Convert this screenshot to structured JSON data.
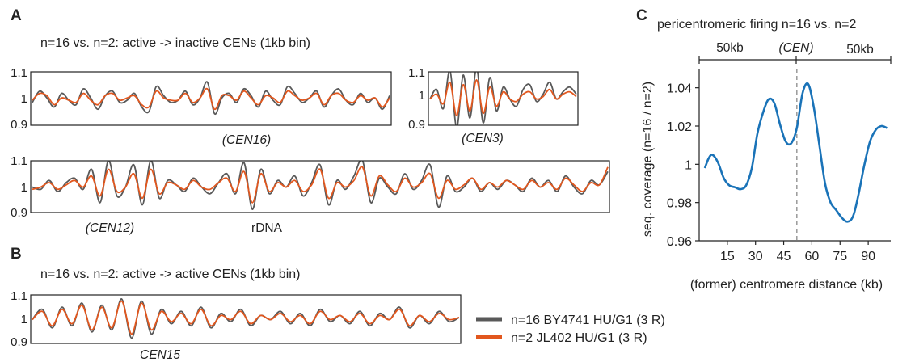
{
  "panels": {
    "a": {
      "label": "A",
      "title": "n=16 vs. n=2: active -> inactive CENs  (1kb bin)"
    },
    "b": {
      "label": "B",
      "title": "n=16 vs. n=2: active -> active CENs  (1kb bin)"
    },
    "c": {
      "label": "C",
      "title": "pericentromeric firing n=16 vs. n=2"
    }
  },
  "track_ticks": [
    "1.1",
    "1",
    "0.9"
  ],
  "annotations": {
    "cen16": "(CEN16)",
    "cen3": "(CEN3)",
    "cen12": "(CEN12)",
    "rdna": "rDNA",
    "cen15": "CEN15",
    "cen": "(CEN)",
    "span_left": "50kb",
    "span_right": "50kb"
  },
  "legend": [
    {
      "label": "n=16 BY4741 HU/G1 (3 R)",
      "color": "#595959"
    },
    {
      "label": "n=2 JL402 HU/G1 (3 R)",
      "color": "#e2571e"
    }
  ],
  "colors": {
    "gray": "#595959",
    "orange": "#e2571e",
    "blue": "#1a73b8"
  },
  "chart_data": [
    {
      "type": "line",
      "panel": "A",
      "track": "CEN16",
      "ylim": [
        0.9,
        1.1
      ],
      "yticks": [
        "1.1",
        "1",
        "0.9"
      ],
      "series": [
        {
          "name": "n=16 BY4741 HU/G1 (3 R)",
          "color": "#595959",
          "values": [
            0.99,
            1.04,
            1.01,
            0.97,
            1.03,
            1.0,
            0.98,
            1.05,
            1.01,
            0.96,
            1.02,
            1.04,
            0.99,
            1.0,
            1.03,
            0.97,
            0.95,
            1.06,
            1.02,
            0.99,
            1.0,
            1.04,
            0.98,
            1.01,
            1.08,
            0.94,
            1.01,
            1.03,
            0.99,
            1.05,
            1.02,
            0.97,
            1.04,
            1.0,
            0.98,
            1.06,
            1.03,
            0.99,
            1.01,
            1.04,
            0.97,
            1.02,
            1.05,
            1.0,
            0.98,
            1.03,
            0.99,
            1.01,
            0.96,
            1.02
          ]
        },
        {
          "name": "n=2 JL402 HU/G1 (3 R)",
          "color": "#e2571e",
          "values": [
            1.0,
            1.03,
            1.02,
            0.98,
            1.01,
            1.0,
            0.99,
            1.03,
            1.0,
            0.98,
            1.02,
            1.03,
            1.0,
            1.01,
            1.02,
            0.98,
            0.97,
            1.04,
            1.01,
            1.0,
            1.0,
            1.03,
            0.99,
            1.01,
            1.05,
            0.96,
            1.02,
            1.02,
            1.0,
            1.04,
            1.01,
            0.98,
            1.02,
            1.01,
            0.99,
            1.04,
            1.02,
            1.0,
            1.01,
            1.03,
            0.98,
            1.02,
            1.03,
            1.0,
            0.99,
            1.02,
            1.0,
            1.01,
            0.97,
            1.01
          ]
        }
      ]
    },
    {
      "type": "line",
      "panel": "A",
      "track": "CEN3",
      "ylim": [
        0.9,
        1.1
      ],
      "yticks": [
        "1.1",
        "1",
        "0.9"
      ],
      "series": [
        {
          "name": "n=16 BY4741 HU/G1 (3 R)",
          "color": "#595959",
          "values": [
            1.0,
            1.04,
            0.96,
            1.12,
            0.88,
            1.1,
            0.92,
            1.13,
            0.9,
            1.09,
            0.95,
            1.05,
            1.0,
            0.97,
            1.04,
            1.06,
            0.99,
            1.02,
            1.07,
            1.0,
            1.03,
            1.05,
            1.02
          ]
        },
        {
          "name": "n=2 JL402 HU/G1 (3 R)",
          "color": "#e2571e",
          "values": [
            1.0,
            1.02,
            0.98,
            1.07,
            0.93,
            1.06,
            0.95,
            1.08,
            0.94,
            1.05,
            0.97,
            1.03,
            1.0,
            0.99,
            1.02,
            1.03,
            1.0,
            1.01,
            1.04,
            1.0,
            1.02,
            1.03,
            1.01
          ]
        }
      ]
    },
    {
      "type": "line",
      "panel": "A",
      "track": "CEN12 / rDNA",
      "ylim": [
        0.9,
        1.1
      ],
      "yticks": [
        "1.1",
        "1",
        "0.9"
      ],
      "series": [
        {
          "name": "n=16 BY4741 HU/G1 (3 R)",
          "color": "#595959",
          "values": [
            1.0,
            0.99,
            1.03,
            0.98,
            1.02,
            1.04,
            0.99,
            1.08,
            0.93,
            1.12,
            0.96,
            1.0,
            1.1,
            0.92,
            1.12,
            0.95,
            1.03,
            1.01,
            0.98,
            1.04,
            1.0,
            0.97,
            1.02,
            1.06,
            0.97,
            1.11,
            0.9,
            1.08,
            0.97,
            1.03,
            1.0,
            1.05,
            0.96,
            1.02,
            1.1,
            0.92,
            1.03,
            0.99,
            1.05,
            1.12,
            0.93,
            1.04,
            1.0,
            0.97,
            1.06,
            0.99,
            1.03,
            1.1,
            0.91,
            1.05,
            0.98,
            1.0,
            1.04,
            0.98,
            1.02,
            0.99,
            1.03,
            1.01,
            0.98,
            1.04,
            1.0,
            1.03,
            0.98,
            1.05,
            1.0,
            0.97,
            1.03,
            1.01,
            1.07
          ]
        },
        {
          "name": "n=2 JL402 HU/G1 (3 R)",
          "color": "#e2571e",
          "values": [
            0.99,
            1.0,
            1.02,
            0.99,
            1.01,
            1.03,
            1.0,
            1.05,
            0.96,
            1.08,
            0.98,
            1.0,
            1.06,
            0.95,
            1.08,
            0.97,
            1.02,
            1.01,
            0.99,
            1.03,
            1.0,
            0.99,
            1.02,
            1.04,
            0.98,
            1.07,
            0.93,
            1.06,
            0.98,
            1.02,
            1.0,
            1.03,
            0.98,
            1.01,
            1.08,
            0.95,
            1.02,
            1.0,
            1.03,
            1.09,
            0.96,
            1.05,
            1.01,
            0.98,
            1.04,
            1.0,
            1.02,
            1.06,
            0.95,
            1.03,
            0.99,
            1.01,
            1.04,
            0.99,
            1.02,
            1.0,
            1.03,
            1.01,
            0.99,
            1.03,
            1.0,
            1.02,
            0.99,
            1.04,
            1.01,
            0.98,
            1.02,
            1.01,
            1.09
          ]
        }
      ]
    },
    {
      "type": "line",
      "panel": "B",
      "track": "CEN15",
      "ylim": [
        0.9,
        1.1
      ],
      "yticks": [
        "1.1",
        "1",
        "0.9"
      ],
      "series": [
        {
          "name": "n=16 BY4741 HU/G1 (3 R)",
          "color": "#595959",
          "values": [
            1.0,
            1.05,
            0.96,
            1.06,
            0.97,
            1.08,
            0.94,
            1.07,
            0.95,
            1.1,
            0.91,
            1.09,
            0.93,
            1.05,
            0.98,
            1.04,
            0.97,
            1.06,
            0.96,
            1.03,
            0.99,
            1.05,
            0.97,
            1.02,
            1.0,
            1.04,
            0.98,
            1.03,
            0.97,
            1.05,
            0.99,
            1.02,
            0.98,
            1.04,
            0.97,
            1.03,
            1.0,
            1.06,
            0.96,
            1.02,
            0.98,
            1.04,
            0.99,
            1.01
          ]
        },
        {
          "name": "n=2 JL402 HU/G1 (3 R)",
          "color": "#e2571e",
          "values": [
            1.0,
            1.04,
            0.97,
            1.05,
            0.98,
            1.07,
            0.95,
            1.06,
            0.96,
            1.09,
            0.93,
            1.08,
            0.95,
            1.04,
            0.99,
            1.03,
            0.98,
            1.05,
            0.97,
            1.02,
            1.0,
            1.04,
            0.98,
            1.02,
            1.0,
            1.03,
            0.99,
            1.02,
            0.98,
            1.04,
            1.0,
            1.02,
            0.99,
            1.03,
            0.98,
            1.02,
            1.0,
            1.05,
            0.97,
            1.02,
            0.99,
            1.03,
            1.0,
            1.01
          ]
        }
      ]
    },
    {
      "type": "line",
      "panel": "C",
      "title": "pericentromeric firing n=16 vs. n=2",
      "xlabel": "(former) centromere distance (kb)",
      "ylabel": "seq. coverage (n=16 / n=2)",
      "xlim": [
        0,
        102
      ],
      "ylim": [
        0.96,
        1.05
      ],
      "xticks": [
        15,
        30,
        45,
        60,
        75,
        90
      ],
      "yticks": [
        0.96,
        0.98,
        1,
        1.02,
        1.04
      ],
      "centromere_x": 52,
      "x": [
        3,
        5,
        7,
        10,
        13,
        16,
        19,
        22,
        25,
        28,
        31,
        34,
        37,
        40,
        43,
        46,
        49,
        52,
        55,
        58,
        61,
        64,
        67,
        70,
        73,
        76,
        79,
        82,
        85,
        88,
        91,
        94,
        97,
        100
      ],
      "series": [
        {
          "name": "",
          "color": "#1a73b8",
          "values": [
            0.998,
            1.003,
            1.005,
            1.001,
            0.993,
            0.989,
            0.988,
            0.987,
            0.989,
            0.998,
            1.016,
            1.027,
            1.034,
            1.032,
            1.021,
            1.012,
            1.011,
            1.019,
            1.037,
            1.042,
            1.03,
            1.01,
            0.99,
            0.98,
            0.976,
            0.972,
            0.97,
            0.973,
            0.985,
            1.0,
            1.012,
            1.018,
            1.02,
            1.019
          ]
        }
      ]
    }
  ]
}
